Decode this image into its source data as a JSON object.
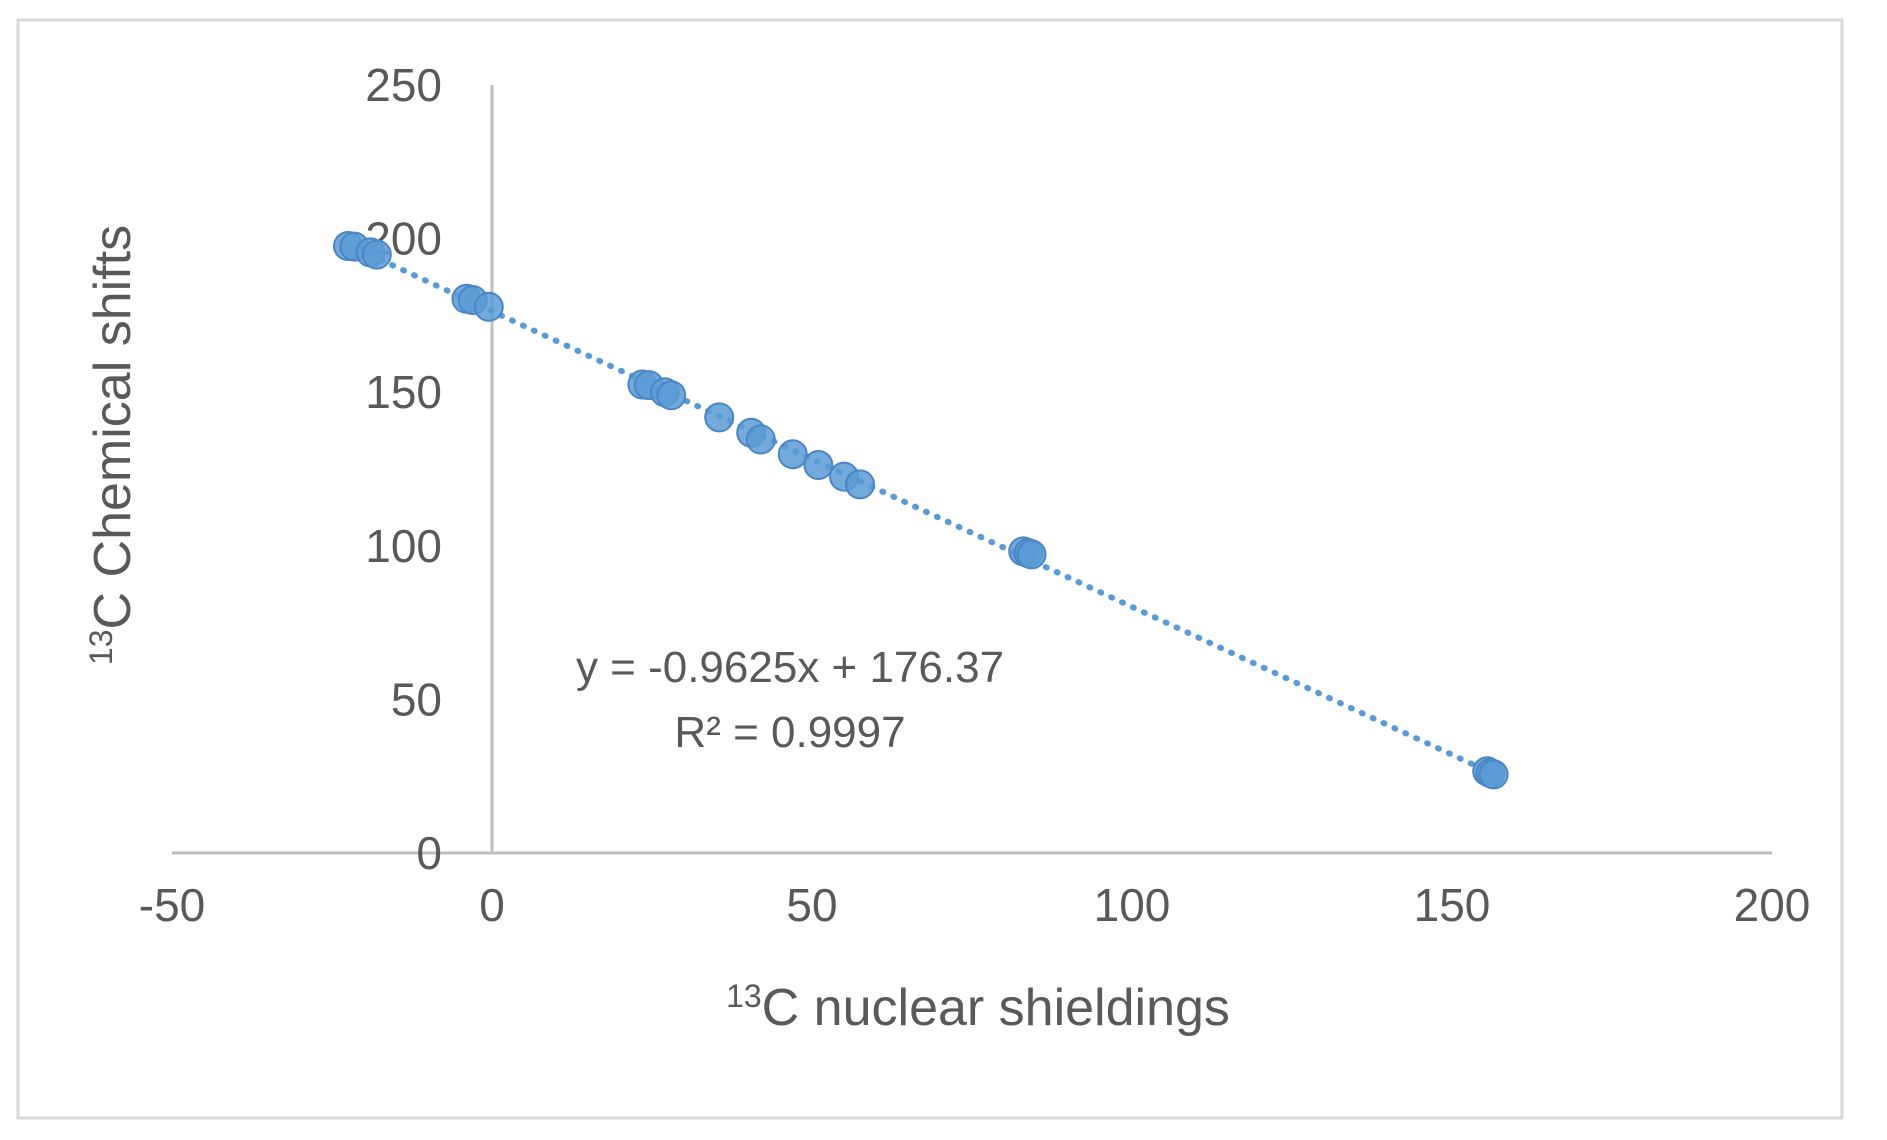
{
  "chart_data": {
    "type": "scatter",
    "title": "",
    "xlabel": "nuclear shieldings",
    "xlabel_sup": "13",
    "xlabel_base": "C",
    "ylabel": "Chemical shifts",
    "ylabel_sup": "13",
    "ylabel_base": "C",
    "xlim": [
      -50,
      200
    ],
    "ylim": [
      0,
      250
    ],
    "x_ticks": [
      -50,
      0,
      50,
      100,
      150,
      200
    ],
    "x_tick_labels": [
      "-50",
      "0",
      "50",
      "100",
      "150",
      "200"
    ],
    "y_ticks": [
      0,
      50,
      100,
      150,
      200,
      250
    ],
    "y_tick_labels": [
      "0",
      "50",
      "100",
      "150",
      "200",
      "250"
    ],
    "grid": false,
    "legend": "none",
    "colors": {
      "marker_fill": "#5b9bd5",
      "marker_edge": "#4a86c5",
      "trendline": "#5b9bd5",
      "axis": "#bfbfbf",
      "text": "#595959",
      "frame": "#d9d9d9"
    },
    "series": [
      {
        "values_xy": [
          [
            -22.5,
            197.6
          ],
          [
            -21.5,
            197.4
          ],
          [
            -19.0,
            195.5
          ],
          [
            -18.0,
            194.8
          ],
          [
            -4.0,
            180.4
          ],
          [
            -3.0,
            180.0
          ],
          [
            -0.5,
            177.8
          ],
          [
            23.5,
            152.5
          ],
          [
            24.5,
            152.3
          ],
          [
            27.0,
            150.0
          ],
          [
            28.0,
            149.0
          ],
          [
            35.5,
            141.8
          ],
          [
            40.5,
            136.8
          ],
          [
            42.0,
            134.6
          ],
          [
            47.0,
            129.8
          ],
          [
            51.0,
            126.3
          ],
          [
            55.0,
            122.5
          ],
          [
            57.5,
            120.0
          ],
          [
            83.0,
            98.2
          ],
          [
            83.8,
            97.6
          ],
          [
            84.3,
            97.2
          ],
          [
            155.5,
            26.6
          ],
          [
            156.0,
            26.0
          ],
          [
            156.5,
            25.6
          ]
        ]
      }
    ],
    "trendline": {
      "type": "linear",
      "slope": -0.9625,
      "intercept": 176.37,
      "x_range": [
        -19,
        156
      ],
      "equation": "y = -0.9625x + 176.37",
      "r2_label": "R² = 0.9997"
    }
  }
}
